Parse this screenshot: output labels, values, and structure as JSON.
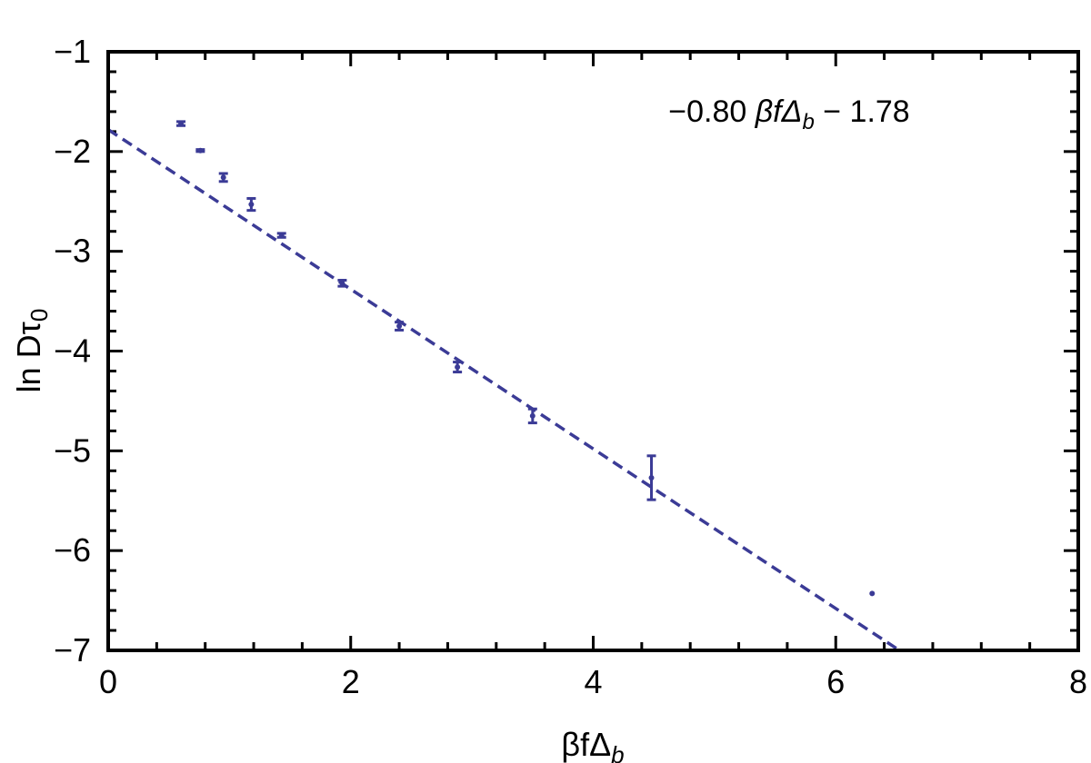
{
  "chart_data": {
    "type": "scatter",
    "xlim": [
      0,
      8
    ],
    "ylim": [
      -7,
      -1
    ],
    "x_ticks": [
      0,
      2,
      4,
      6,
      8
    ],
    "y_ticks": [
      -1,
      -2,
      -3,
      -4,
      -5,
      -6,
      -7
    ],
    "x_tick_labels": [
      "0",
      "2",
      "4",
      "6",
      "8"
    ],
    "y_tick_labels": [
      "−1",
      "−2",
      "−3",
      "−4",
      "−5",
      "−6",
      "−7"
    ],
    "xlabel": {
      "main": "βfΔ",
      "sub": "b"
    },
    "ylabel": {
      "main": "ln Dτ",
      "sub": "0"
    },
    "grid": false,
    "series": [
      {
        "kind": "errorbar-points",
        "color": "#3b3b96",
        "points": [
          {
            "x": 0.6,
            "y": -1.72,
            "err": 0.02
          },
          {
            "x": 0.76,
            "y": -1.99,
            "err": 0.01
          },
          {
            "x": 0.95,
            "y": -2.26,
            "err": 0.04
          },
          {
            "x": 1.18,
            "y": -2.53,
            "err": 0.06
          },
          {
            "x": 1.43,
            "y": -2.84,
            "err": 0.02
          },
          {
            "x": 1.93,
            "y": -3.32,
            "err": 0.03
          },
          {
            "x": 2.4,
            "y": -3.75,
            "err": 0.04
          },
          {
            "x": 2.88,
            "y": -4.16,
            "err": 0.05
          },
          {
            "x": 3.5,
            "y": -4.65,
            "err": 0.07
          },
          {
            "x": 4.48,
            "y": -5.27,
            "err": 0.22
          },
          {
            "x": 6.3,
            "y": -6.43,
            "err": 0.0
          }
        ]
      },
      {
        "kind": "fit-line",
        "color": "#3b3b96",
        "dashed": true,
        "slope": -0.8,
        "intercept": -1.78
      }
    ],
    "annotation": {
      "prefix": "−0.80 ",
      "var": "βfΔ",
      "sub": "b",
      "suffix": " − 1.78"
    }
  }
}
